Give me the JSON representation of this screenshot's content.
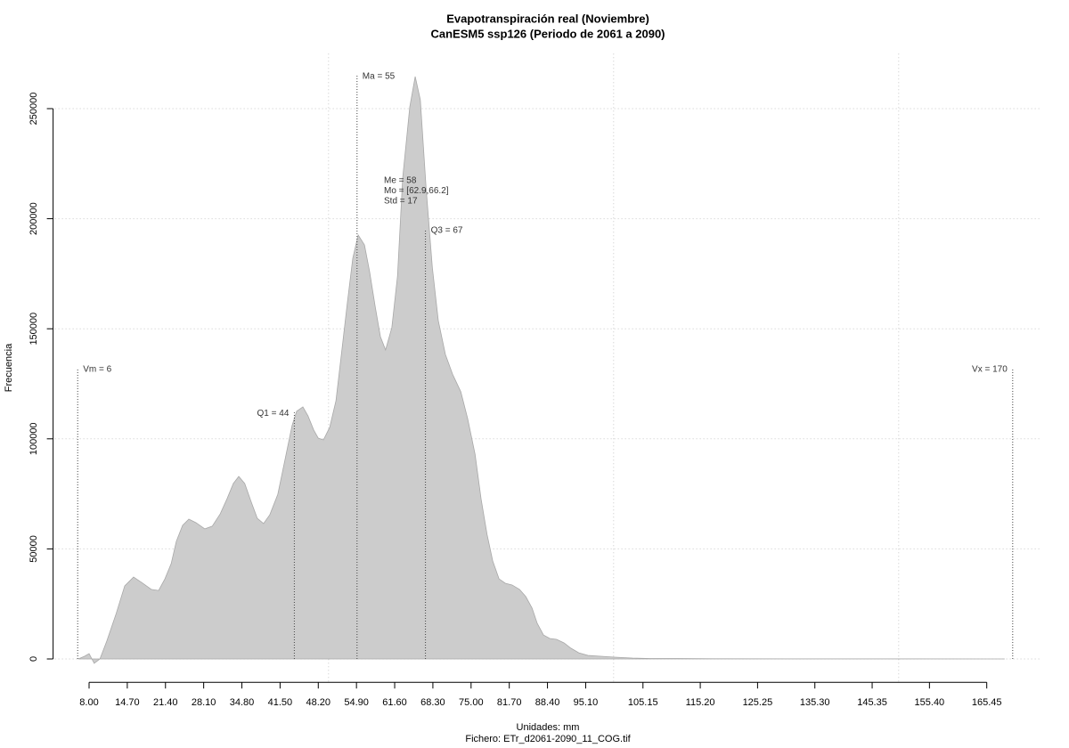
{
  "chart_data": {
    "type": "area",
    "title": "Evapotranspiración real (Noviembre)",
    "subtitle": "CanESM5 ssp126 (Periodo de 2061 a 2090)",
    "xlabel": "Unidades: mm",
    "caption": "Fichero: ETr_d2061-2090_11_COG.tif",
    "ylabel": "Frecuencia",
    "color": "#cccccc",
    "xlim": [
      2,
      175
    ],
    "ylim": [
      -10600,
      275000
    ],
    "xticks": [
      {
        "value": 8,
        "label": "8.00"
      },
      {
        "value": 14.7,
        "label": "14.70"
      },
      {
        "value": 21.4,
        "label": "21.40"
      },
      {
        "value": 28.1,
        "label": "28.10"
      },
      {
        "value": 34.8,
        "label": "34.80"
      },
      {
        "value": 41.5,
        "label": "41.50"
      },
      {
        "value": 48.2,
        "label": "48.20"
      },
      {
        "value": 54.9,
        "label": "54.90"
      },
      {
        "value": 61.6,
        "label": "61.60"
      },
      {
        "value": 68.3,
        "label": "68.30"
      },
      {
        "value": 75,
        "label": "75.00"
      },
      {
        "value": 81.7,
        "label": "81.70"
      },
      {
        "value": 88.4,
        "label": "88.40"
      },
      {
        "value": 95.1,
        "label": "95.10"
      },
      {
        "value": 105.15,
        "label": "105.15"
      },
      {
        "value": 115.2,
        "label": "115.20"
      },
      {
        "value": 125.25,
        "label": "125.25"
      },
      {
        "value": 135.3,
        "label": "135.30"
      },
      {
        "value": 145.35,
        "label": "145.35"
      },
      {
        "value": 155.4,
        "label": "155.40"
      },
      {
        "value": 165.45,
        "label": "165.45"
      }
    ],
    "yticks": [
      0,
      50000,
      100000,
      150000,
      200000,
      250000
    ],
    "xgrid": [
      50,
      100,
      150
    ],
    "grid": true,
    "x": [
      6.1,
      7.2,
      8,
      8.9,
      9.9,
      11.1,
      12.7,
      14.25,
      15.8,
      17.4,
      18.9,
      20.2,
      21.3,
      22.4,
      23.3,
      24.4,
      25.5,
      26.75,
      28.3,
      29.6,
      31,
      32.2,
      33.3,
      34.25,
      35.3,
      36.4,
      37.5,
      38.6,
      39.7,
      41.1,
      42.4,
      43.6,
      44.4,
      45.5,
      46.4,
      47.4,
      48.2,
      49.1,
      50.2,
      51.3,
      52.4,
      53.3,
      54.25,
      55.2,
      56.3,
      57.2,
      58.2,
      59.1,
      60,
      61.1,
      62.1,
      63,
      64.25,
      65.2,
      66.1,
      67.1,
      68.2,
      69.25,
      70.5,
      71.75,
      73.2,
      74.4,
      75.7,
      76.75,
      77.8,
      78.8,
      79.9,
      81,
      82.2,
      83.5,
      84.6,
      85.7,
      86.6,
      87.7,
      88.8,
      90,
      91.3,
      92.5,
      93.9,
      95.5,
      97.8,
      100.2,
      103.3,
      106.4,
      111.1,
      117.4,
      133,
      148.6,
      168.6
    ],
    "values": [
      0,
      1200,
      2400,
      -2000,
      0,
      8100,
      20200,
      33200,
      37200,
      34400,
      31600,
      31100,
      36400,
      43300,
      53400,
      60700,
      63500,
      61900,
      59100,
      60300,
      65900,
      72800,
      79700,
      82900,
      79700,
      71600,
      63900,
      61500,
      65500,
      74800,
      91000,
      106000,
      112500,
      114500,
      110400,
      104000,
      100300,
      99500,
      105200,
      117300,
      141600,
      161800,
      182000,
      192600,
      188100,
      176000,
      159800,
      146400,
      140400,
      150500,
      174000,
      218400,
      250800,
      264600,
      254000,
      214400,
      178000,
      153700,
      138300,
      129400,
      121400,
      109200,
      93000,
      72800,
      56600,
      44500,
      36400,
      34400,
      33600,
      31600,
      28300,
      23100,
      16200,
      10900,
      9300,
      8900,
      7300,
      4900,
      2800,
      1600,
      1200,
      800,
      400,
      200,
      200,
      100,
      50,
      20,
      0
    ],
    "stat_lines": [
      {
        "label": "Vm = 6",
        "value": 6,
        "height": 132000,
        "anchor": "start"
      },
      {
        "label": "Q1 = 44",
        "value": 44,
        "height": 112000,
        "anchor": "end"
      },
      {
        "label": "Ma = 55",
        "value": 55,
        "height": 265000,
        "anchor": "start"
      },
      {
        "label": "Q3 = 67",
        "value": 67,
        "height": 195000,
        "anchor": "start"
      },
      {
        "label": "Vx = 170",
        "value": 170,
        "height": 132000,
        "anchor": "end"
      }
    ],
    "stats_text": [
      "Me = 58",
      "Mo = [62.9,66.2]",
      "Std = 17"
    ]
  }
}
